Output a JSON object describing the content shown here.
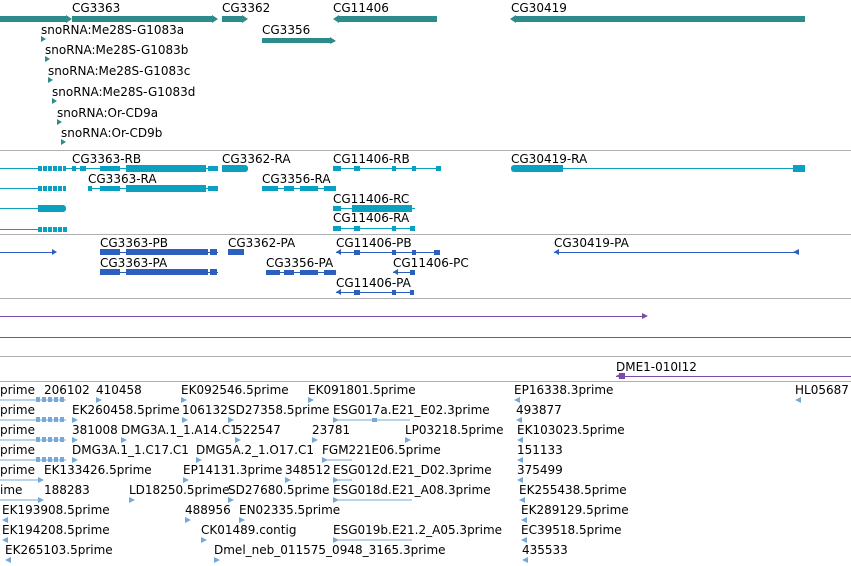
{
  "colors": {
    "gene": "#2e8b8b",
    "flybase": "#0aa0c0",
    "protein": "#2d5fbf",
    "est": "#74a9d8",
    "purple": "#7c4aa8",
    "separator": "#b0b0b0"
  },
  "genes": {
    "items": [
      "CG3363",
      "CG3362",
      "CG11406",
      "CG30419",
      "CG3356"
    ]
  },
  "snorna": {
    "items": [
      "snoRNA:Me28S-G1083a",
      "snoRNA:Me28S-G1083b",
      "snoRNA:Me28S-G1083c",
      "snoRNA:Me28S-G1083d",
      "snoRNA:Or-CD9a",
      "snoRNA:Or-CD9b"
    ]
  },
  "transcripts": {
    "items": [
      "CG3363-RB",
      "CG3362-RA",
      "CG11406-RB",
      "CG30419-RA",
      "CG3363-RA",
      "CG3356-RA",
      "CG11406-RC",
      "CG11406-RA"
    ]
  },
  "proteins": {
    "items": [
      "CG3363-PB",
      "CG3362-PA",
      "CG11406-PB",
      "CG30419-PA",
      "CG3363-PA",
      "CG3356-PA",
      "CG11406-PC",
      "CG11406-PA"
    ]
  },
  "clone": {
    "label": "DME1-010I12"
  },
  "ests": {
    "items": [
      "prime",
      "206102",
      "410458",
      "EK092546.5prime",
      "EK091801.5prime",
      "EP16338.3prime",
      "HL05687",
      "prime",
      "EK260458.5prime",
      "106132",
      "SD27358.5prime",
      "ESG017a.E21_E02.3prime",
      "493877",
      "prime",
      "381008",
      "DMG3A.1_1.A14.C1",
      "522547",
      "23781",
      "LP03218.5prime",
      "EK103023.5prime",
      "prime",
      "DMG3A.1_1.C17.C1",
      "DMG5A.2_1.O17.C1",
      "FGM221E06.5prime",
      "151133",
      "prime",
      "EK133426.5prime",
      "EP14131.3prime",
      "348512",
      "ESG012d.E21_D02.3prime",
      "375499",
      "ime",
      "188283",
      "LD18250.5prime",
      "SD27680.5prime",
      "ESG018d.E21_A08.3prime",
      "EK255438.5prime",
      "EK193908.5prime",
      "488956",
      "EN02335.5prime",
      "EK289129.5prime",
      "EK194208.5prime",
      "CK01489.contig",
      "ESG019b.E21.2_A05.3prime",
      "EC39518.5prime",
      "EK265103.5prime",
      "Dmel_neb_011575_0948_3165.3prime",
      "435533"
    ]
  }
}
